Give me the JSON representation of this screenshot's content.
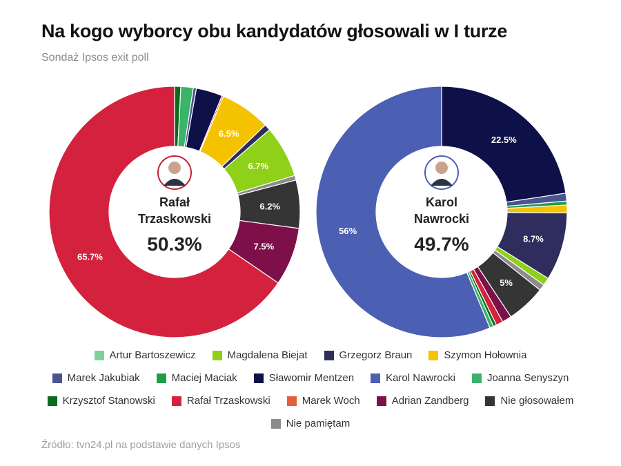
{
  "header": {
    "title": "Na kogo wyborcy obu kandydatów głosowali w I turze",
    "subtitle": "Sondaż Ipsos exit poll"
  },
  "footer": {
    "source": "Źródło: tvn24.pl na podstawie danych Ipsos"
  },
  "colors": {
    "Artur Bartoszewicz": "#7fcf9a",
    "Magdalena Biejat": "#8fd018",
    "Grzegorz Braun": "#2e2d5e",
    "Szymon Hołownia": "#f5c200",
    "Marek Jakubiak": "#4a5490",
    "Maciej Maciak": "#1e9e47",
    "Sławomir Mentzen": "#0e1048",
    "Karol Nawrocki": "#4b5fb3",
    "Joanna Senyszyn": "#3bb36b",
    "Krzysztof Stanowski": "#0a6b1e",
    "Rafał Trzaskowski": "#d4213d",
    "Marek Woch": "#e0613a",
    "Adrian Zandberg": "#7d1048",
    "Nie głosowałem": "#353535",
    "Nie pamiętam": "#8c8c8c"
  },
  "chart_data": [
    {
      "type": "pie",
      "center": {
        "name_line1": "Rafał",
        "name_line2": "Trzaskowski",
        "value_label": "50.3%",
        "avatar": "person-avatar-icon"
      },
      "slices": [
        {
          "name": "Krzysztof Stanowski",
          "value": 0.8
        },
        {
          "name": "Joanna Senyszyn",
          "value": 1.6
        },
        {
          "name": "Marek Jakubiak",
          "value": 0.4
        },
        {
          "name": "Sławomir Mentzen",
          "value": 3.4
        },
        {
          "name": "Marek Woch",
          "value": 0.2
        },
        {
          "name": "Szymon Hołownia",
          "value": 6.5,
          "label": "6.5%"
        },
        {
          "name": "Grzegorz Braun",
          "value": 0.8
        },
        {
          "name": "Magdalena Biejat",
          "value": 6.7,
          "label": "6.7%"
        },
        {
          "name": "Nie pamiętam",
          "value": 0.6
        },
        {
          "name": "Nie głosowałem",
          "value": 6.2,
          "label": "6.2%"
        },
        {
          "name": "Adrian Zandberg",
          "value": 7.5,
          "label": "7.5%"
        },
        {
          "name": "Rafał Trzaskowski",
          "value": 65.7,
          "label": "65.7%"
        }
      ]
    },
    {
      "type": "pie",
      "center": {
        "name_line1": "Karol",
        "name_line2": "Nawrocki",
        "value_label": "49.7%",
        "avatar": "person-avatar-icon"
      },
      "slices": [
        {
          "name": "Sławomir Mentzen",
          "value": 22.5,
          "label": "22.5%"
        },
        {
          "name": "Marek Jakubiak",
          "value": 1.0
        },
        {
          "name": "Maciej Maciak",
          "value": 0.5
        },
        {
          "name": "Szymon Hołownia",
          "value": 1.0
        },
        {
          "name": "Grzegorz Braun",
          "value": 8.7,
          "label": "8.7%"
        },
        {
          "name": "Magdalena Biejat",
          "value": 1.0
        },
        {
          "name": "Nie pamiętam",
          "value": 0.8
        },
        {
          "name": "Nie głosowałem",
          "value": 5.0,
          "label": "5%"
        },
        {
          "name": "Adrian Zandberg",
          "value": 1.2
        },
        {
          "name": "Rafał Trzaskowski",
          "value": 0.9
        },
        {
          "name": "Krzysztof Stanowski",
          "value": 0.4
        },
        {
          "name": "Joanna Senyszyn",
          "value": 0.5
        },
        {
          "name": "Karol Nawrocki",
          "value": 56.0,
          "label": "56%"
        }
      ]
    }
  ],
  "legend": {
    "rows": [
      [
        "Artur Bartoszewicz",
        "Magdalena Biejat",
        "Grzegorz Braun",
        "Szymon Hołownia"
      ],
      [
        "Marek Jakubiak",
        "Maciej Maciak",
        "Sławomir Mentzen",
        "Karol Nawrocki",
        "Joanna Senyszyn"
      ],
      [
        "Krzysztof Stanowski",
        "Rafał Trzaskowski",
        "Marek Woch",
        "Adrian Zandberg",
        "Nie głosowałem"
      ],
      [
        "Nie pamiętam"
      ]
    ]
  }
}
